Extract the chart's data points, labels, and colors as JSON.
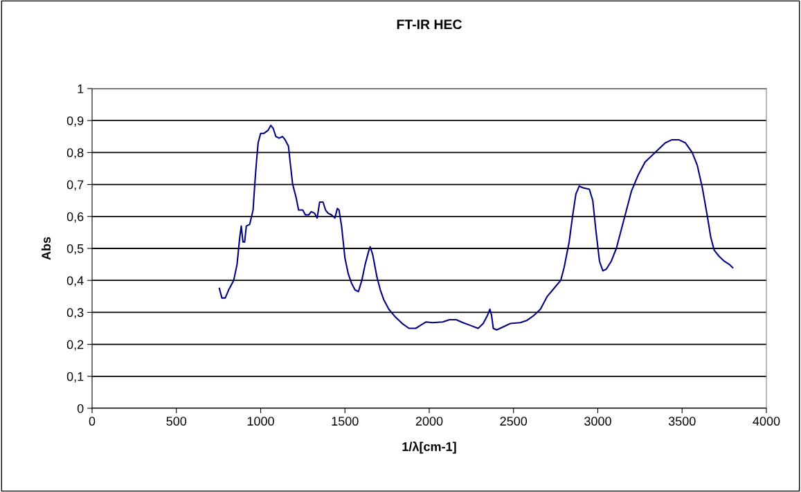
{
  "chart_data": {
    "type": "line",
    "title": "FT-IR HEC",
    "xlabel": "1/λ[cm-1]",
    "ylabel": "Abs",
    "xlim": [
      0,
      4000
    ],
    "xticks": [
      0,
      500,
      1000,
      1500,
      2000,
      2500,
      3000,
      3500,
      4000
    ],
    "ylim": [
      0,
      1
    ],
    "yticks": [
      0,
      {
        "value": 0.1,
        "label": "0,1"
      },
      {
        "value": 0.2,
        "label": "0,2"
      },
      {
        "value": 0.3,
        "label": "0,3"
      },
      {
        "value": 0.4,
        "label": "0,4"
      },
      {
        "value": 0.5,
        "label": "0,5"
      },
      {
        "value": 0.6,
        "label": "0,6"
      },
      {
        "value": 0.7,
        "label": "0,7"
      },
      {
        "value": 0.8,
        "label": "0,8"
      },
      {
        "value": 0.9,
        "label": "0,9"
      },
      1
    ],
    "grid": "y",
    "legend": false,
    "marker": "none",
    "line_style": "solid",
    "series": [
      {
        "color": "#000080",
        "x": [
          755,
          770,
          790,
          810,
          840,
          860,
          875,
          885,
          895,
          905,
          915,
          935,
          955,
          965,
          975,
          985,
          1000,
          1020,
          1045,
          1060,
          1075,
          1090,
          1110,
          1130,
          1145,
          1165,
          1175,
          1190,
          1210,
          1225,
          1250,
          1265,
          1285,
          1300,
          1320,
          1335,
          1350,
          1370,
          1385,
          1400,
          1420,
          1440,
          1455,
          1465,
          1480,
          1500,
          1520,
          1540,
          1560,
          1580,
          1600,
          1620,
          1640,
          1650,
          1665,
          1690,
          1710,
          1730,
          1760,
          1800,
          1840,
          1880,
          1920,
          1950,
          1980,
          2020,
          2080,
          2120,
          2160,
          2200,
          2240,
          2290,
          2320,
          2345,
          2360,
          2370,
          2380,
          2400,
          2440,
          2480,
          2540,
          2580,
          2620,
          2660,
          2700,
          2740,
          2780,
          2800,
          2830,
          2850,
          2870,
          2890,
          2910,
          2950,
          2970,
          2990,
          3010,
          3030,
          3050,
          3080,
          3110,
          3140,
          3170,
          3200,
          3240,
          3280,
          3320,
          3360,
          3400,
          3440,
          3480,
          3520,
          3560,
          3590,
          3620,
          3650,
          3670,
          3690,
          3720,
          3750,
          3780,
          3800
        ],
        "values": [
          0.375,
          0.345,
          0.345,
          0.37,
          0.4,
          0.45,
          0.53,
          0.57,
          0.52,
          0.52,
          0.57,
          0.575,
          0.62,
          0.7,
          0.77,
          0.83,
          0.86,
          0.86,
          0.87,
          0.885,
          0.875,
          0.85,
          0.845,
          0.85,
          0.84,
          0.82,
          0.77,
          0.7,
          0.66,
          0.62,
          0.62,
          0.605,
          0.605,
          0.615,
          0.61,
          0.595,
          0.645,
          0.645,
          0.62,
          0.61,
          0.605,
          0.595,
          0.625,
          0.62,
          0.57,
          0.47,
          0.42,
          0.39,
          0.37,
          0.365,
          0.4,
          0.45,
          0.49,
          0.505,
          0.48,
          0.41,
          0.37,
          0.34,
          0.31,
          0.285,
          0.265,
          0.25,
          0.25,
          0.26,
          0.27,
          0.268,
          0.27,
          0.277,
          0.277,
          0.268,
          0.26,
          0.25,
          0.265,
          0.29,
          0.31,
          0.29,
          0.25,
          0.245,
          0.255,
          0.265,
          0.268,
          0.275,
          0.29,
          0.31,
          0.35,
          0.375,
          0.4,
          0.44,
          0.52,
          0.6,
          0.67,
          0.695,
          0.69,
          0.685,
          0.65,
          0.55,
          0.46,
          0.43,
          0.435,
          0.46,
          0.5,
          0.56,
          0.62,
          0.68,
          0.73,
          0.77,
          0.79,
          0.81,
          0.83,
          0.84,
          0.84,
          0.83,
          0.8,
          0.76,
          0.69,
          0.6,
          0.535,
          0.495,
          0.475,
          0.46,
          0.45,
          0.44
        ]
      }
    ]
  }
}
